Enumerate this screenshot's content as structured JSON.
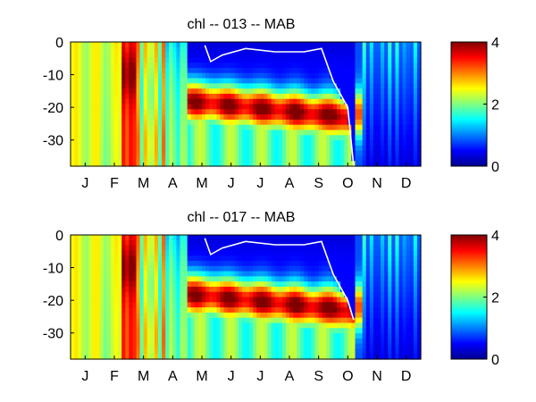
{
  "colormap": "jet",
  "chart_data": [
    {
      "type": "heatmap",
      "title": "chl -- 013 -- MAB",
      "xlabel": "",
      "ylabel": "",
      "x_tick_labels": [
        "J",
        "F",
        "M",
        "A",
        "M",
        "J",
        "J",
        "A",
        "S",
        "O",
        "N",
        "D"
      ],
      "y_tick_labels": [
        "0",
        "-10",
        "-20",
        "-30"
      ],
      "y_ticks": [
        0,
        -10,
        -20,
        -30
      ],
      "ylim": [
        -38,
        0
      ],
      "xlim_months": [
        0,
        12
      ],
      "colorbar": {
        "ticks": [
          0,
          2,
          4
        ],
        "tick_labels": [
          "0",
          "2",
          "4"
        ],
        "range": [
          0,
          4
        ]
      },
      "overlay_line_color": "#ffffff",
      "layer_depth_approx": [
        {
          "month": 4.6,
          "depth": -1
        },
        {
          "month": 4.8,
          "depth": -6
        },
        {
          "month": 5.2,
          "depth": -4
        },
        {
          "month": 6.0,
          "depth": -2
        },
        {
          "month": 7.0,
          "depth": -3
        },
        {
          "month": 8.0,
          "depth": -3
        },
        {
          "month": 8.6,
          "depth": -2
        },
        {
          "month": 9.0,
          "depth": -12
        },
        {
          "month": 9.5,
          "depth": -20
        },
        {
          "month": 9.7,
          "depth": -38
        }
      ],
      "max_depth_approx": -21
    },
    {
      "type": "heatmap",
      "title": "chl -- 017 -- MAB",
      "xlabel": "",
      "ylabel": "",
      "x_tick_labels": [
        "J",
        "F",
        "M",
        "A",
        "M",
        "J",
        "J",
        "A",
        "S",
        "O",
        "N",
        "D"
      ],
      "y_tick_labels": [
        "0",
        "-10",
        "-20",
        "-30"
      ],
      "y_ticks": [
        0,
        -10,
        -20,
        -30
      ],
      "ylim": [
        -38,
        0
      ],
      "xlim_months": [
        0,
        12
      ],
      "colorbar": {
        "ticks": [
          0,
          2,
          4
        ],
        "tick_labels": [
          "0",
          "2",
          "4"
        ],
        "range": [
          0,
          4
        ]
      },
      "overlay_line_color": "#ffffff",
      "layer_depth_approx": [
        {
          "month": 4.6,
          "depth": -1
        },
        {
          "month": 4.8,
          "depth": -6
        },
        {
          "month": 5.2,
          "depth": -4
        },
        {
          "month": 6.0,
          "depth": -2
        },
        {
          "month": 7.0,
          "depth": -3
        },
        {
          "month": 8.0,
          "depth": -3
        },
        {
          "month": 8.6,
          "depth": -2
        },
        {
          "month": 9.0,
          "depth": -12
        },
        {
          "month": 9.5,
          "depth": -20
        },
        {
          "month": 9.7,
          "depth": -26
        }
      ],
      "max_depth_approx": -28
    }
  ]
}
